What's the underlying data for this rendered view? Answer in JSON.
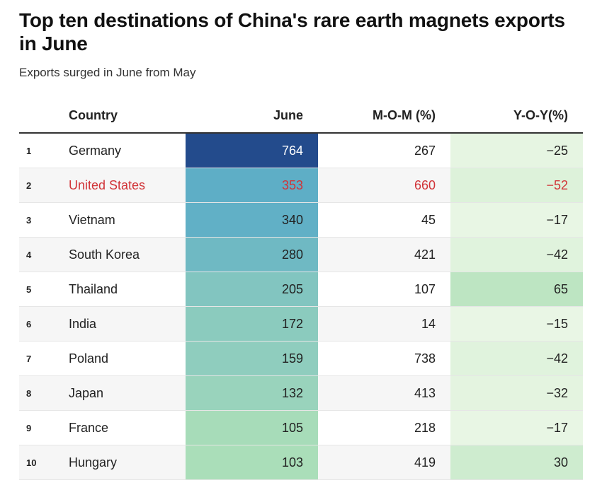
{
  "title": "Top ten destinations of China's rare earth magnets exports in June",
  "subtitle": "Exports surged in June from May",
  "columns": {
    "rank": "",
    "country": "Country",
    "june": "June",
    "mom": "M-O-M (%)",
    "yoy": "Y-O-Y(%)"
  },
  "highlight_color": "#d13438",
  "chart_data": {
    "type": "table",
    "title": "Top ten destinations of China's rare earth magnets exports in June",
    "subtitle": "Exports surged in June from May",
    "columns": [
      "Country",
      "June",
      "M-O-M (%)",
      "Y-O-Y(%)"
    ],
    "highlighted_row": "United States",
    "rows": [
      {
        "rank": "1",
        "country": "Germany",
        "june": 764,
        "mom": 267,
        "yoy": -25
      },
      {
        "rank": "2",
        "country": "United States",
        "june": 353,
        "mom": 660,
        "yoy": -52
      },
      {
        "rank": "3",
        "country": "Vietnam",
        "june": 340,
        "mom": 45,
        "yoy": -17
      },
      {
        "rank": "4",
        "country": "South Korea",
        "june": 280,
        "mom": 421,
        "yoy": -42
      },
      {
        "rank": "5",
        "country": "Thailand",
        "june": 205,
        "mom": 107,
        "yoy": 65
      },
      {
        "rank": "6",
        "country": "India",
        "june": 172,
        "mom": 14,
        "yoy": -15
      },
      {
        "rank": "7",
        "country": "Poland",
        "june": 159,
        "mom": 738,
        "yoy": -42
      },
      {
        "rank": "8",
        "country": "Japan",
        "june": 132,
        "mom": 413,
        "yoy": -32
      },
      {
        "rank": "9",
        "country": "France",
        "june": 105,
        "mom": 218,
        "yoy": -17
      },
      {
        "rank": "10",
        "country": "Hungary",
        "june": 103,
        "mom": 419,
        "yoy": 30
      }
    ]
  }
}
